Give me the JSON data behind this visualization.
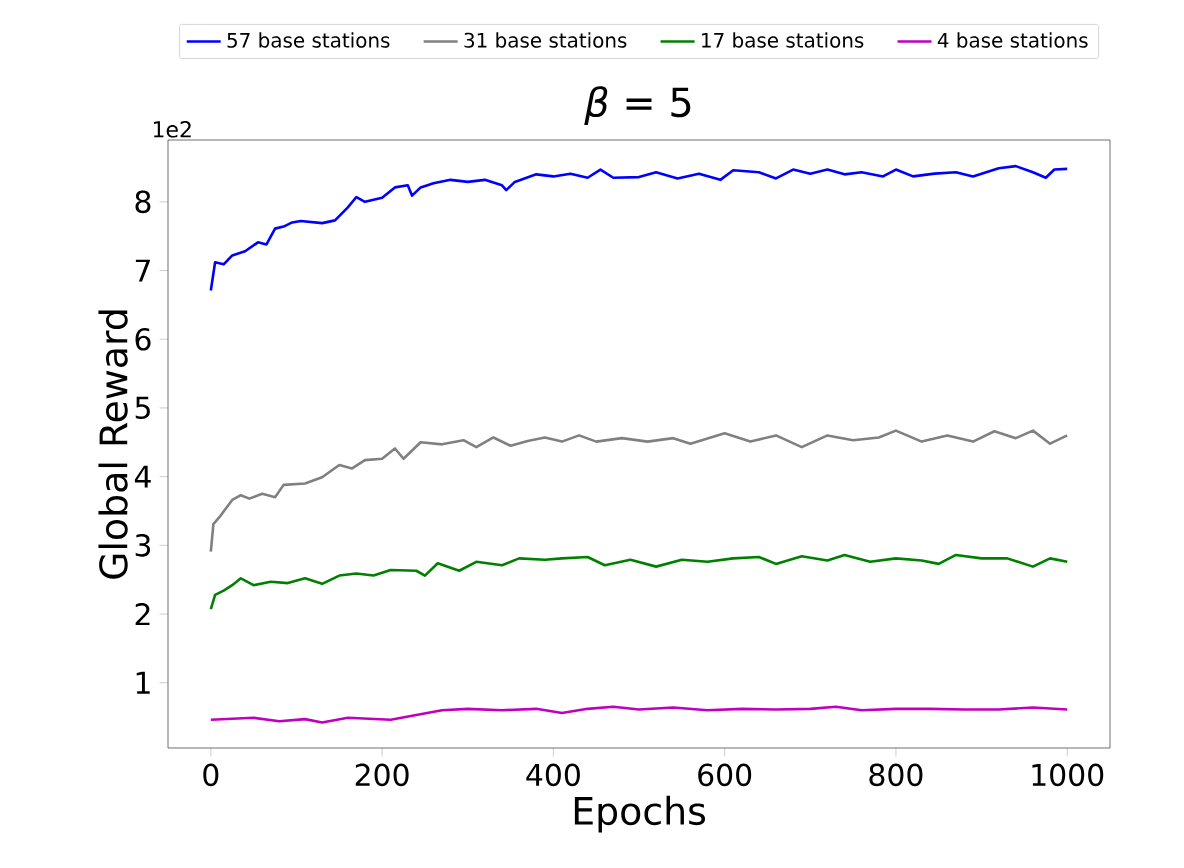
{
  "chart_data": {
    "type": "line",
    "title": "*β* = 5",
    "xlabel": "Epochs",
    "ylabel": "Global Reward",
    "annotations": [
      "1e2"
    ],
    "xlim": [
      -50,
      1050
    ],
    "ylim": [
      0.05,
      8.9
    ],
    "xticks": [
      0,
      200,
      400,
      600,
      800,
      1000
    ],
    "yticks": [
      1,
      2,
      3,
      4,
      5,
      6,
      7,
      8
    ],
    "legend": "top",
    "grid": false,
    "marker": "none",
    "line_style": "solid",
    "series": [
      {
        "name": "57 base stations",
        "color": "#0000ff",
        "x": [
          0,
          5,
          15,
          25,
          40,
          55,
          65,
          75,
          85,
          95,
          105,
          130,
          145,
          160,
          170,
          180,
          200,
          215,
          230,
          235,
          245,
          260,
          280,
          300,
          320,
          340,
          345,
          355,
          380,
          400,
          420,
          440,
          455,
          470,
          500,
          520,
          545,
          570,
          595,
          610,
          640,
          660,
          680,
          700,
          720,
          740,
          760,
          785,
          800,
          820,
          845,
          870,
          890,
          920,
          940,
          960,
          975,
          985,
          1000
        ],
        "values": [
          6.71,
          7.12,
          7.09,
          7.22,
          7.28,
          7.41,
          7.38,
          7.61,
          7.64,
          7.7,
          7.72,
          7.69,
          7.73,
          7.92,
          8.07,
          8.0,
          8.06,
          8.21,
          8.24,
          8.09,
          8.21,
          8.27,
          8.32,
          8.29,
          8.32,
          8.24,
          8.17,
          8.29,
          8.4,
          8.37,
          8.41,
          8.35,
          8.47,
          8.35,
          8.36,
          8.43,
          8.34,
          8.41,
          8.32,
          8.46,
          8.43,
          8.34,
          8.47,
          8.41,
          8.47,
          8.4,
          8.43,
          8.37,
          8.47,
          8.37,
          8.41,
          8.43,
          8.37,
          8.49,
          8.52,
          8.43,
          8.35,
          8.47,
          8.48
        ]
      },
      {
        "name": "31 base stations",
        "color": "#808080",
        "x": [
          0,
          3,
          10,
          25,
          35,
          45,
          60,
          75,
          85,
          110,
          130,
          150,
          165,
          180,
          200,
          215,
          225,
          245,
          270,
          295,
          310,
          330,
          350,
          370,
          390,
          410,
          430,
          450,
          480,
          510,
          540,
          560,
          600,
          630,
          660,
          690,
          720,
          750,
          780,
          800,
          830,
          860,
          890,
          915,
          940,
          960,
          980,
          1000
        ],
        "values": [
          2.91,
          3.31,
          3.41,
          3.66,
          3.73,
          3.68,
          3.75,
          3.7,
          3.88,
          3.9,
          3.99,
          4.17,
          4.12,
          4.24,
          4.26,
          4.41,
          4.26,
          4.5,
          4.47,
          4.53,
          4.43,
          4.57,
          4.45,
          4.52,
          4.57,
          4.51,
          4.6,
          4.51,
          4.56,
          4.51,
          4.56,
          4.48,
          4.63,
          4.51,
          4.6,
          4.43,
          4.6,
          4.53,
          4.57,
          4.67,
          4.51,
          4.6,
          4.51,
          4.66,
          4.56,
          4.67,
          4.48,
          4.6
        ]
      },
      {
        "name": "17 base stations",
        "color": "#008000",
        "x": [
          0,
          5,
          15,
          25,
          35,
          50,
          70,
          90,
          110,
          130,
          150,
          170,
          190,
          210,
          240,
          250,
          265,
          290,
          310,
          340,
          360,
          390,
          410,
          440,
          460,
          490,
          520,
          550,
          580,
          610,
          640,
          660,
          690,
          720,
          740,
          770,
          800,
          830,
          850,
          870,
          900,
          930,
          960,
          980,
          1000
        ],
        "values": [
          2.07,
          2.28,
          2.34,
          2.42,
          2.52,
          2.42,
          2.47,
          2.45,
          2.52,
          2.44,
          2.56,
          2.59,
          2.56,
          2.64,
          2.63,
          2.56,
          2.74,
          2.63,
          2.76,
          2.71,
          2.81,
          2.79,
          2.81,
          2.83,
          2.71,
          2.79,
          2.69,
          2.79,
          2.76,
          2.81,
          2.83,
          2.73,
          2.84,
          2.78,
          2.86,
          2.76,
          2.81,
          2.78,
          2.73,
          2.86,
          2.81,
          2.81,
          2.69,
          2.81,
          2.76
        ]
      },
      {
        "name": "4 base stations",
        "color": "#bf00bf",
        "x": [
          0,
          50,
          80,
          110,
          130,
          160,
          210,
          240,
          270,
          300,
          340,
          380,
          410,
          440,
          470,
          500,
          540,
          580,
          620,
          660,
          700,
          730,
          760,
          800,
          840,
          880,
          920,
          960,
          1000
        ],
        "values": [
          0.46,
          0.49,
          0.44,
          0.47,
          0.42,
          0.49,
          0.46,
          0.53,
          0.6,
          0.62,
          0.6,
          0.62,
          0.56,
          0.62,
          0.65,
          0.61,
          0.64,
          0.6,
          0.62,
          0.61,
          0.62,
          0.65,
          0.6,
          0.62,
          0.62,
          0.61,
          0.61,
          0.64,
          0.61
        ]
      }
    ]
  }
}
